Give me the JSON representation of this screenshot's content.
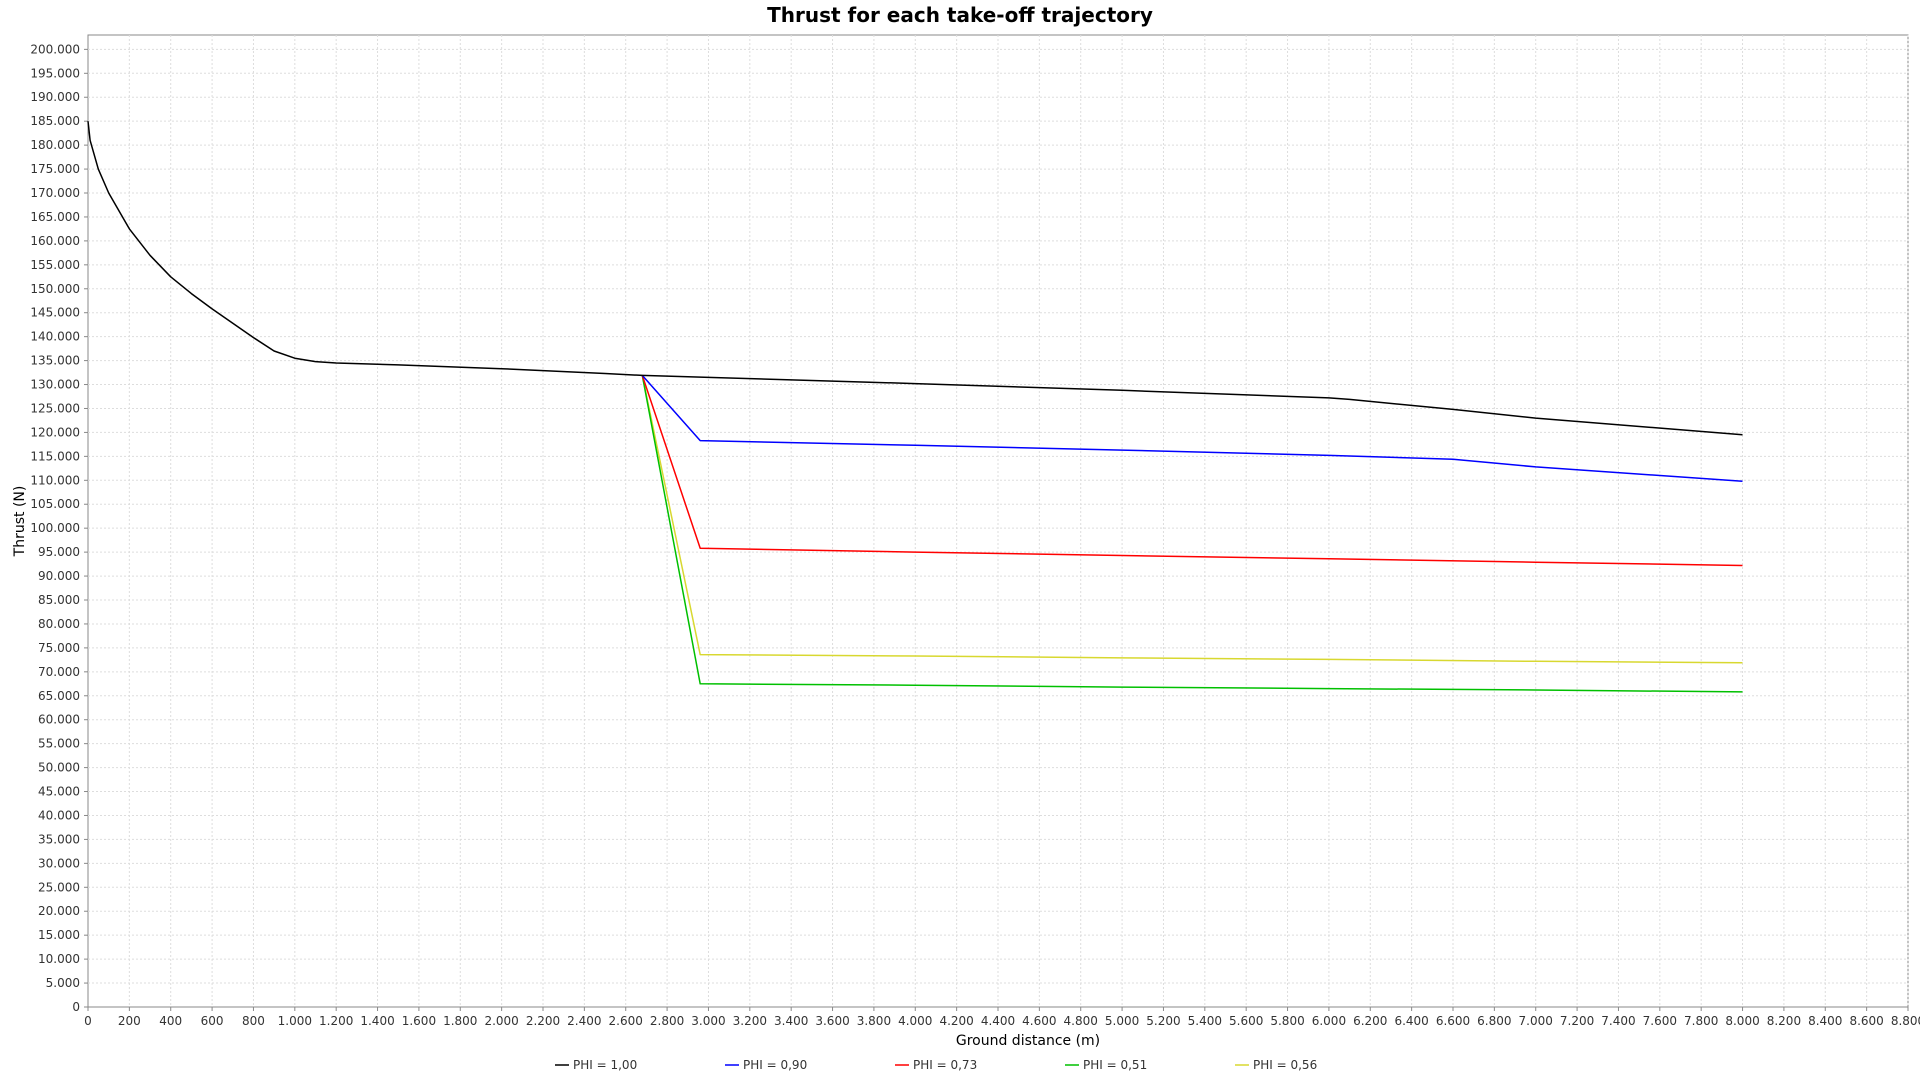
{
  "chart_data": {
    "type": "line",
    "title": "Thrust for each take-off trajectory",
    "xlabel": "Ground distance (m)",
    "ylabel": "Thrust (N)",
    "xlim": [
      0,
      8800
    ],
    "ylim": [
      0,
      203000
    ],
    "x_tick_step": 200,
    "y_tick_step": 5000,
    "x_ticks": [
      "0",
      "200",
      "400",
      "600",
      "800",
      "1.000",
      "1.200",
      "1.400",
      "1.600",
      "1.800",
      "2.000",
      "2.200",
      "2.400",
      "2.600",
      "2.800",
      "3.000",
      "3.200",
      "3.400",
      "3.600",
      "3.800",
      "4.000",
      "4.200",
      "4.400",
      "4.600",
      "4.800",
      "5.000",
      "5.200",
      "5.400",
      "5.600",
      "5.800",
      "6.000",
      "6.200",
      "6.400",
      "6.600",
      "6.800",
      "7.000",
      "7.200",
      "7.400",
      "7.600",
      "7.800",
      "8.000",
      "8.200",
      "8.400",
      "8.600",
      "8.800"
    ],
    "y_ticks": [
      "0",
      "5.000",
      "10.000",
      "15.000",
      "20.000",
      "25.000",
      "30.000",
      "35.000",
      "40.000",
      "45.000",
      "50.000",
      "55.000",
      "60.000",
      "65.000",
      "70.000",
      "75.000",
      "80.000",
      "85.000",
      "90.000",
      "95.000",
      "100.000",
      "105.000",
      "110.000",
      "115.000",
      "120.000",
      "125.000",
      "130.000",
      "135.000",
      "140.000",
      "145.000",
      "150.000",
      "155.000",
      "160.000",
      "165.000",
      "170.000",
      "175.000",
      "180.000",
      "185.000",
      "190.000",
      "195.000",
      "200.000"
    ],
    "grid": true,
    "legend_position": "bottom",
    "series": [
      {
        "name": "PHI = 1,00",
        "color": "#000000",
        "x": [
          0,
          10,
          50,
          100,
          200,
          300,
          400,
          500,
          600,
          700,
          800,
          900,
          1000,
          1100,
          1200,
          1500,
          2000,
          2500,
          2680,
          3000,
          4000,
          5000,
          6000,
          6100,
          6600,
          7000,
          8000
        ],
        "y": [
          185000,
          181000,
          175000,
          170000,
          162500,
          157000,
          152500,
          149000,
          145800,
          142800,
          139800,
          137000,
          135500,
          134800,
          134500,
          134100,
          133300,
          132300,
          131900,
          131500,
          130200,
          128800,
          127200,
          126900,
          124800,
          123000,
          119500
        ]
      },
      {
        "name": "PHI = 0,90",
        "color": "#0000ff",
        "x": [
          2680,
          2960,
          4000,
          5000,
          6000,
          6600,
          7000,
          8000
        ],
        "y": [
          131900,
          118300,
          117300,
          116300,
          115200,
          114400,
          112800,
          109800
        ]
      },
      {
        "name": "PHI = 0,73",
        "color": "#ff0000",
        "x": [
          2680,
          2960,
          4000,
          5000,
          6000,
          7000,
          8000
        ],
        "y": [
          131900,
          95800,
          95000,
          94300,
          93600,
          92900,
          92200
        ]
      },
      {
        "name": "PHI = 0,51",
        "color": "#00c000",
        "x": [
          2680,
          2960,
          4000,
          5000,
          6000,
          7000,
          8000
        ],
        "y": [
          131900,
          67500,
          67200,
          66800,
          66500,
          66200,
          65800
        ]
      },
      {
        "name": "PHI = 0,56",
        "color": "#d8d830",
        "x": [
          2680,
          2960,
          4000,
          5000,
          6000,
          7000,
          8000
        ],
        "y": [
          131900,
          73600,
          73300,
          72900,
          72600,
          72200,
          71900
        ]
      }
    ]
  }
}
